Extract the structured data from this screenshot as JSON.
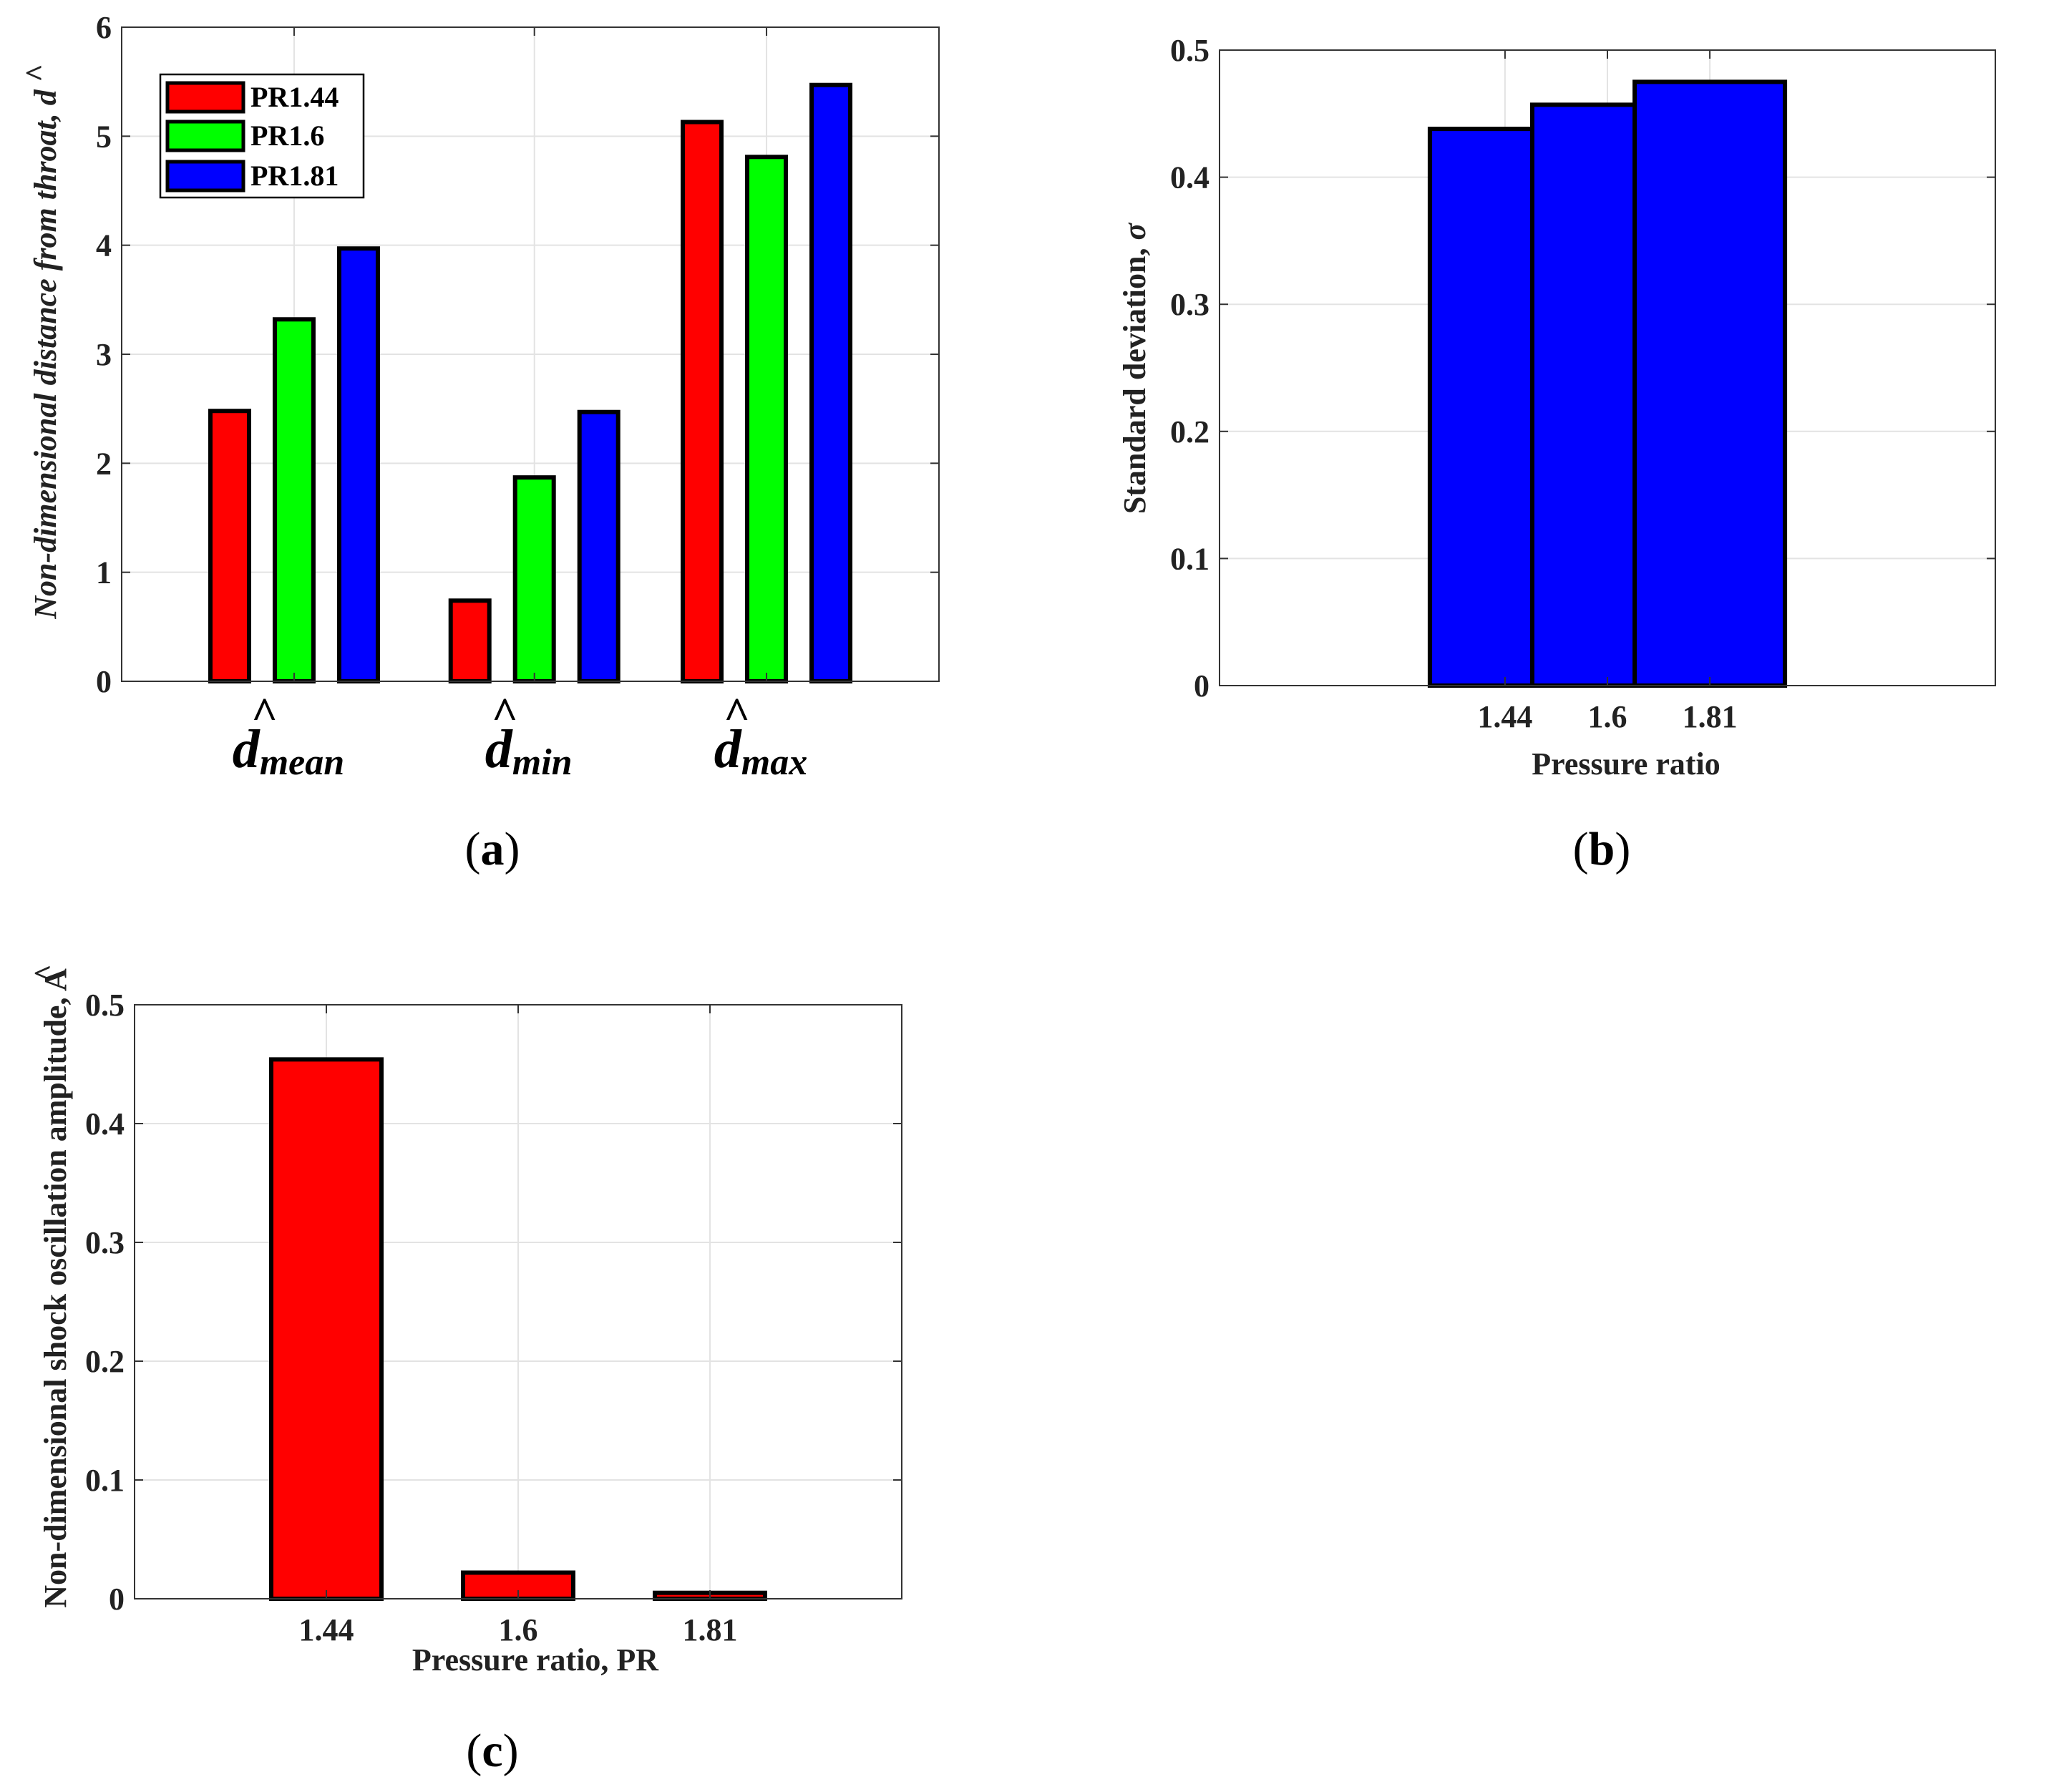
{
  "panels": {
    "a": {
      "caption_open": "(",
      "caption_letter": "a",
      "caption_close": ")"
    },
    "b": {
      "caption_open": "(",
      "caption_letter": "b",
      "caption_close": ")"
    },
    "c": {
      "caption_open": "(",
      "caption_letter": "c",
      "caption_close": ")"
    }
  },
  "chart_data": [
    {
      "id": "a",
      "type": "bar",
      "categories": [
        {
          "hat": "^",
          "base": "d",
          "sub": "mean"
        },
        {
          "hat": "^",
          "base": "d",
          "sub": "min"
        },
        {
          "hat": "^",
          "base": "d",
          "sub": "max"
        }
      ],
      "series": [
        {
          "name": "PR1.44",
          "color": "#ff0000",
          "values": [
            2.48,
            0.74,
            5.13
          ]
        },
        {
          "name": "PR1.6",
          "color": "#00ff00",
          "values": [
            3.32,
            1.87,
            4.81
          ]
        },
        {
          "name": "PR1.81",
          "color": "#0000ff",
          "values": [
            3.97,
            2.47,
            5.47
          ]
        }
      ],
      "ylabel_main": "Non-dimensional distance from throat, ",
      "ylabel_sym": "d",
      "ylabel_hat": "^",
      "ylim": [
        0,
        6
      ],
      "yticks": [
        "0",
        "1",
        "2",
        "3",
        "4",
        "5",
        "6"
      ],
      "legend": "top-left",
      "grid": true
    },
    {
      "id": "b",
      "type": "bar",
      "categories": [
        "1.44",
        "1.6",
        "1.81"
      ],
      "values": [
        0.438,
        0.457,
        0.475
      ],
      "color": "#0000ff",
      "xlabel": "Pressure ratio",
      "ylabel_main": "Standard deviation, ",
      "ylabel_sym": "σ",
      "ylim": [
        0,
        0.5
      ],
      "yticks": [
        "0",
        "0.1",
        "0.2",
        "0.3",
        "0.4",
        "0.5"
      ],
      "grid": true
    },
    {
      "id": "c",
      "type": "bar",
      "categories": [
        "1.44",
        "1.6",
        "1.81"
      ],
      "values": [
        0.454,
        0.022,
        0.005
      ],
      "color": "#ff0000",
      "xlabel": "Pressure ratio, PR",
      "ylabel_main": "Non-dimensional shock oscillation amplitude, ",
      "ylabel_sym": "A",
      "ylabel_hat": "^",
      "ylim": [
        0,
        0.5
      ],
      "yticks": [
        "0",
        "0.1",
        "0.2",
        "0.3",
        "0.4",
        "0.5"
      ],
      "grid": true
    }
  ]
}
